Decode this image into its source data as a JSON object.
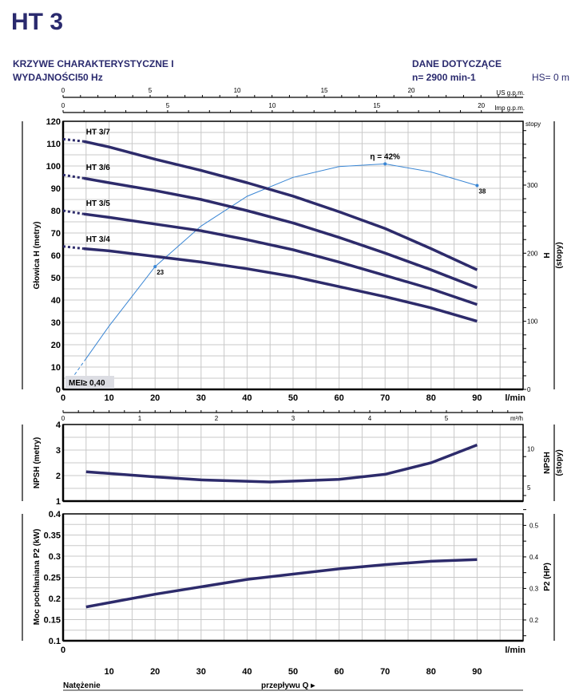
{
  "header": {
    "model": "HT 3",
    "subtitle_line1": "KRZYWE CHARAKTERYSTYCZNE I",
    "subtitle_line2": "WYDAJNOŚCI50 Hz",
    "data_title": "DANE DOTYCZĄCE",
    "speed": "n= 2900 min-1",
    "hs": "HS= 0 m"
  },
  "colors": {
    "brand": "#2a2a6e",
    "curve": "#2d2b6b",
    "efficiency": "#3a86d4",
    "grid": "#c8c8c8"
  },
  "chart_data": [
    {
      "type": "line",
      "title": "Głowica H (metry)",
      "xlabel": "l/min",
      "ylabel": "Głowica H (metry)",
      "ylabel_right": "H",
      "ylabel_right2": "(stopy)",
      "right_unit": "stopy",
      "xlim": [
        0,
        100
      ],
      "ylim": [
        0,
        120
      ],
      "grid": true,
      "x_ticks": [
        0,
        10,
        20,
        30,
        40,
        50,
        60,
        70,
        80,
        90
      ],
      "y_ticks": [
        0,
        10,
        20,
        30,
        40,
        50,
        60,
        70,
        80,
        90,
        100,
        110,
        120
      ],
      "y_right_ticks": [
        0,
        100,
        200,
        300
      ],
      "top_axes": [
        {
          "unit": "US g.p.m.",
          "ticks": [
            0,
            5,
            10,
            15,
            20
          ]
        },
        {
          "unit": "Imp g.p.m.",
          "ticks": [
            0,
            5,
            10,
            15,
            20
          ]
        }
      ],
      "bottom_axis": {
        "unit": "m³/h",
        "ticks": [
          0,
          1,
          2,
          3,
          4,
          5
        ]
      },
      "series": [
        {
          "name": "HT 3/7",
          "dotted": [
            [
              0,
              112
            ],
            [
              4.5,
              111
            ]
          ],
          "points": [
            [
              4.5,
              111
            ],
            [
              10,
              108.5
            ],
            [
              20,
              103
            ],
            [
              30,
              98
            ],
            [
              40,
              92.5
            ],
            [
              50,
              86.5
            ],
            [
              60,
              79.5
            ],
            [
              70,
              72
            ],
            [
              80,
              63
            ],
            [
              90,
              53.5
            ]
          ]
        },
        {
          "name": "HT 3/6",
          "dotted": [
            [
              0,
              96
            ],
            [
              4.5,
              94.5
            ]
          ],
          "points": [
            [
              4.5,
              94.5
            ],
            [
              10,
              92.5
            ],
            [
              20,
              89
            ],
            [
              30,
              85
            ],
            [
              40,
              80
            ],
            [
              50,
              74.5
            ],
            [
              60,
              68
            ],
            [
              70,
              61
            ],
            [
              80,
              53.5
            ],
            [
              90,
              45.5
            ]
          ]
        },
        {
          "name": "HT 3/5",
          "dotted": [
            [
              0,
              80
            ],
            [
              4.5,
              78.5
            ]
          ],
          "points": [
            [
              4.5,
              78.5
            ],
            [
              10,
              77
            ],
            [
              20,
              74
            ],
            [
              30,
              71
            ],
            [
              40,
              67
            ],
            [
              50,
              62.5
            ],
            [
              60,
              57
            ],
            [
              70,
              51
            ],
            [
              80,
              45
            ],
            [
              90,
              38
            ]
          ]
        },
        {
          "name": "HT 3/4",
          "dotted": [
            [
              0,
              64
            ],
            [
              4.5,
              63
            ]
          ],
          "points": [
            [
              4.5,
              63
            ],
            [
              10,
              62
            ],
            [
              20,
              59.5
            ],
            [
              30,
              57
            ],
            [
              40,
              54
            ],
            [
              50,
              50.5
            ],
            [
              60,
              46
            ],
            [
              70,
              41.5
            ],
            [
              80,
              36.5
            ],
            [
              90,
              30.5
            ]
          ]
        }
      ],
      "efficiency": {
        "name": "η",
        "peak_label": "η = 42%",
        "unit": "%",
        "points": [
          [
            2.5,
            3
          ],
          [
            5,
            6
          ],
          [
            10,
            12
          ],
          [
            20,
            23
          ],
          [
            30,
            30.5
          ],
          [
            40,
            36
          ],
          [
            50,
            39.5
          ],
          [
            60,
            41.5
          ],
          [
            70,
            42
          ],
          [
            80,
            40.5
          ],
          [
            90,
            38
          ]
        ],
        "markers": [
          {
            "x": 20,
            "value": 23,
            "label": "23"
          },
          {
            "x": 70,
            "value": 42,
            "label": ""
          },
          {
            "x": 90,
            "value": 38,
            "label": "38"
          }
        ]
      },
      "annotation": "MEI≥ 0,40"
    },
    {
      "type": "line",
      "ylabel": "NPSH (metry)",
      "ylabel_right": "NPSH",
      "ylabel_right2": "(stopy)",
      "xlim": [
        0,
        100
      ],
      "ylim": [
        1,
        4
      ],
      "y_ticks": [
        1,
        2,
        3,
        4
      ],
      "y_right_ticks": [
        5,
        10
      ],
      "series": [
        {
          "name": "NPSH",
          "points": [
            [
              5,
              2.15
            ],
            [
              20,
              1.95
            ],
            [
              30,
              1.83
            ],
            [
              45,
              1.75
            ],
            [
              60,
              1.85
            ],
            [
              70,
              2.05
            ],
            [
              80,
              2.5
            ],
            [
              90,
              3.2
            ]
          ]
        }
      ]
    },
    {
      "type": "line",
      "ylabel": "Moc pochłaniana P2 (kW)",
      "ylabel_right": "P2 (HP)",
      "xlabel": "l/min",
      "xlim": [
        0,
        100
      ],
      "ylim": [
        0.1,
        0.4
      ],
      "y_ticks": [
        0.1,
        0.15,
        0.2,
        0.25,
        0.3,
        0.35,
        0.4
      ],
      "y_tick_labels": [
        "0.1",
        "0.15",
        "0.2",
        "0.25",
        "0.3",
        "0.35",
        "0.4"
      ],
      "y_right_ticks": [
        0.2,
        0.3,
        0.4,
        0.5
      ],
      "x_zero_label": "0",
      "series": [
        {
          "name": "P2",
          "points": [
            [
              5,
              0.18
            ],
            [
              20,
              0.21
            ],
            [
              40,
              0.245
            ],
            [
              60,
              0.27
            ],
            [
              70,
              0.28
            ],
            [
              80,
              0.288
            ],
            [
              90,
              0.292
            ]
          ]
        }
      ]
    }
  ],
  "footer": {
    "x_ticks": [
      10,
      20,
      30,
      40,
      50,
      60,
      70,
      80,
      90
    ],
    "label_left": "Natężenie",
    "label_mid": "przepływu Q ▸"
  }
}
